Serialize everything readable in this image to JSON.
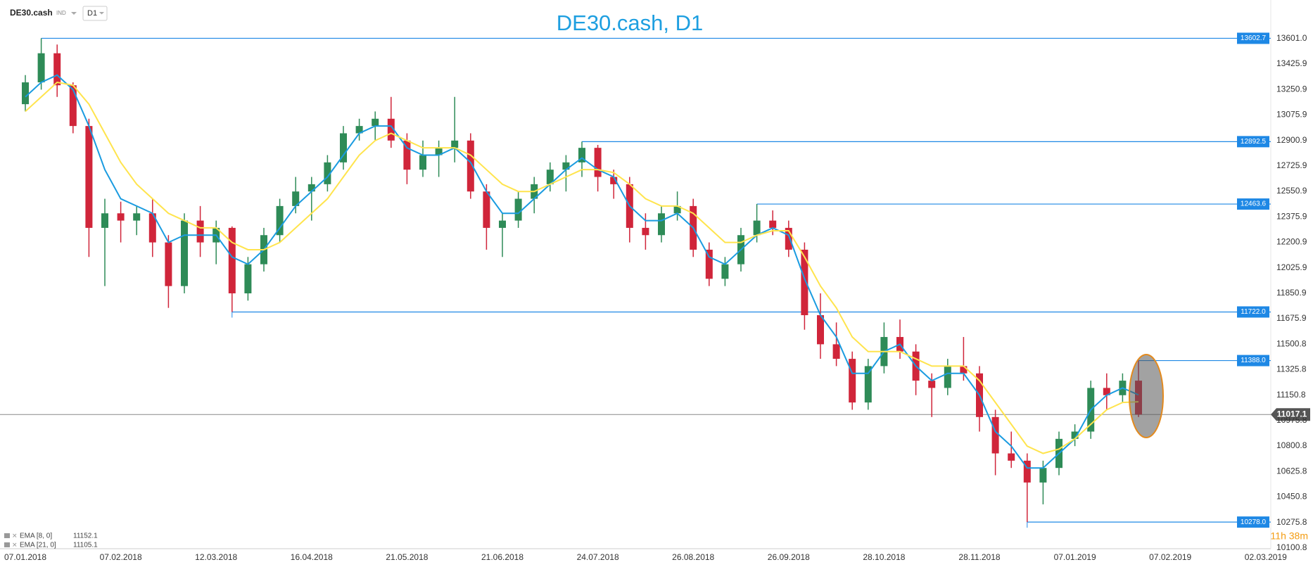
{
  "header": {
    "symbol": "DE30.cash",
    "market": "IND",
    "interval": "D1"
  },
  "chart_data": {
    "type": "candlestick",
    "title": "DE30.cash, D1",
    "categories": [
      "07.01.2018",
      null,
      null,
      null,
      null,
      null,
      "07.02.2018",
      null,
      null,
      null,
      null,
      null,
      "12.03.2018",
      null,
      null,
      null,
      null,
      null,
      "16.04.2018",
      null,
      null,
      null,
      null,
      null,
      "21.05.2018",
      null,
      null,
      null,
      null,
      null,
      "21.06.2018",
      null,
      null,
      null,
      null,
      null,
      "24.07.2018",
      null,
      null,
      null,
      null,
      null,
      "26.08.2018",
      null,
      null,
      null,
      null,
      null,
      "26.09.2018",
      null,
      null,
      null,
      null,
      null,
      "28.10.2018",
      null,
      null,
      null,
      null,
      null,
      "28.11.2018",
      null,
      null,
      null,
      null,
      null,
      "07.01.2019",
      null,
      null,
      null,
      null,
      null,
      "07.02.2019",
      null,
      null,
      null,
      null,
      null,
      "02.03.2019"
    ],
    "open": [
      13150,
      13300,
      13500,
      13280,
      13000,
      12300,
      12400,
      12350,
      12400,
      12200,
      11900,
      12350,
      12200,
      12300,
      11850,
      12050,
      12250,
      12450,
      12550,
      12600,
      12750,
      12950,
      13000,
      13050,
      12900,
      12700,
      12800,
      12850,
      12900,
      12550,
      12300,
      12350,
      12500,
      12600,
      12700,
      12750,
      12850,
      12650,
      12600,
      12300,
      12250,
      12400,
      12450,
      12150,
      11950,
      12050,
      12250,
      12350,
      12300,
      12150,
      11700,
      11500,
      11400,
      11100,
      11350,
      11550,
      11450,
      11250,
      11200,
      11350,
      11300,
      11000,
      10750,
      10700,
      10550,
      10650,
      10850,
      10900,
      11200,
      11150,
      11250,
      null,
      null,
      null,
      null,
      null,
      null,
      null,
      null
    ],
    "high": [
      13350,
      13602.7,
      13560,
      13300,
      13050,
      12500,
      12480,
      12450,
      12500,
      12250,
      12400,
      12450,
      12350,
      12310,
      12100,
      12300,
      12500,
      12650,
      12650,
      12800,
      13000,
      13050,
      13100,
      13200,
      12950,
      12900,
      12900,
      13200,
      12950,
      12600,
      12400,
      12550,
      12650,
      12750,
      12800,
      12892.5,
      12870,
      12700,
      12650,
      12400,
      12450,
      12550,
      12500,
      12200,
      12100,
      12300,
      12463.6,
      12420,
      12350,
      12200,
      11850,
      11650,
      11450,
      11400,
      11650,
      11670,
      11500,
      11300,
      11400,
      11550,
      11350,
      11050,
      10900,
      10750,
      10700,
      10900,
      10950,
      11250,
      11300,
      11300,
      11388,
      null,
      null,
      null,
      null,
      null,
      null,
      null,
      null
    ],
    "low": [
      13100,
      13250,
      13200,
      12950,
      12100,
      11900,
      12200,
      12250,
      12100,
      11750,
      11850,
      12100,
      12050,
      11722,
      11800,
      12000,
      12200,
      12400,
      12350,
      12550,
      12700,
      12900,
      12900,
      12850,
      12600,
      12650,
      12650,
      12750,
      12500,
      12150,
      12100,
      12300,
      12400,
      12550,
      12550,
      12650,
      12550,
      12500,
      12200,
      12150,
      12200,
      12350,
      12100,
      11900,
      11900,
      12000,
      12200,
      12250,
      12100,
      11600,
      11400,
      11350,
      11050,
      11050,
      11300,
      11400,
      11150,
      11000,
      11150,
      11250,
      10900,
      10600,
      10650,
      10278,
      10400,
      10600,
      10800,
      10850,
      11050,
      11100,
      11000,
      null,
      null,
      null,
      null,
      null,
      null,
      null,
      null
    ],
    "close": [
      13300,
      13500,
      13280,
      13000,
      12300,
      12400,
      12350,
      12400,
      12200,
      11900,
      12350,
      12200,
      12300,
      11850,
      12050,
      12250,
      12450,
      12550,
      12600,
      12750,
      12950,
      13000,
      13050,
      12900,
      12700,
      12800,
      12850,
      12900,
      12550,
      12300,
      12350,
      12500,
      12600,
      12700,
      12750,
      12850,
      12650,
      12600,
      12300,
      12250,
      12400,
      12450,
      12150,
      11950,
      12050,
      12250,
      12350,
      12300,
      12150,
      11700,
      11500,
      11400,
      11100,
      11350,
      11550,
      11450,
      11250,
      11200,
      11350,
      11300,
      11000,
      10750,
      10700,
      10550,
      10650,
      10850,
      10900,
      11200,
      11150,
      11250,
      11017.1,
      null,
      null,
      null,
      null,
      null,
      null,
      null,
      null
    ],
    "up_color": "#2e8b57",
    "down_color": "#d0253a",
    "series": [
      {
        "name": "EMA [8, 0]",
        "color": "#1a9be0",
        "values": [
          13200,
          13300,
          13350,
          13250,
          13000,
          12700,
          12500,
          12450,
          12400,
          12200,
          12250,
          12250,
          12250,
          12100,
          12050,
          12150,
          12300,
          12450,
          12550,
          12650,
          12800,
          12950,
          13000,
          13000,
          12850,
          12800,
          12800,
          12850,
          12750,
          12550,
          12400,
          12400,
          12500,
          12600,
          12700,
          12780,
          12700,
          12650,
          12450,
          12350,
          12350,
          12400,
          12300,
          12100,
          12050,
          12150,
          12250,
          12300,
          12250,
          11950,
          11700,
          11550,
          11300,
          11300,
          11450,
          11500,
          11350,
          11250,
          11300,
          11300,
          11150,
          10900,
          10800,
          10650,
          10650,
          10750,
          10850,
          11050,
          11150,
          11200,
          11152.1,
          null,
          null,
          null,
          null,
          null,
          null,
          null,
          null
        ]
      },
      {
        "name": "EMA [21, 0]",
        "color": "#ffe44d",
        "values": [
          13100,
          13200,
          13300,
          13280,
          13150,
          12950,
          12750,
          12600,
          12500,
          12400,
          12350,
          12300,
          12300,
          12200,
          12150,
          12150,
          12200,
          12300,
          12400,
          12500,
          12650,
          12800,
          12900,
          12950,
          12900,
          12850,
          12850,
          12850,
          12800,
          12700,
          12600,
          12550,
          12550,
          12600,
          12650,
          12700,
          12700,
          12680,
          12600,
          12500,
          12450,
          12450,
          12400,
          12300,
          12200,
          12200,
          12250,
          12280,
          12280,
          12100,
          11900,
          11750,
          11550,
          11450,
          11450,
          11450,
          11400,
          11350,
          11350,
          11350,
          11250,
          11100,
          10950,
          10800,
          10750,
          10780,
          10850,
          10950,
          11050,
          11100,
          11105.1,
          null,
          null,
          null,
          null,
          null,
          null,
          null,
          null
        ]
      }
    ],
    "hlines": [
      13602.7,
      12892.5,
      12463.6,
      {
        "value": 11722,
        "label": "11722.0"
      },
      {
        "value": 11388,
        "label": "11388.0"
      },
      {
        "value": 10278,
        "label": "10278.0"
      }
    ],
    "hline_color": "#1e88e5",
    "last": 11017.1,
    "ylim": [
      10095,
      13866
    ],
    "yticks": [
      {
        "value": 13601,
        "label": "13601.0"
      },
      13425.9,
      13250.9,
      13075.9,
      12900.9,
      12725.9,
      12550.9,
      12375.9,
      12200.9,
      12025.9,
      11850.9,
      11675.9,
      11500.8,
      11325.8,
      11150.8,
      10975.8,
      10800.8,
      10625.8,
      10450.8,
      10275.8,
      10100.8
    ],
    "countdown": "11h 38m"
  }
}
